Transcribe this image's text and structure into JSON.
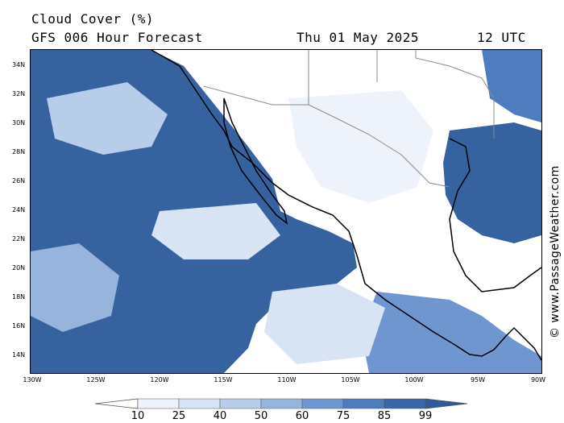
{
  "title": {
    "variable": "Cloud Cover (%)",
    "model": "GFS 006 Hour Forecast",
    "date": "Thu 01 May 2025",
    "time": "12 UTC"
  },
  "credit": "© www.PassageWeather.com",
  "lat_labels": [
    "34N",
    "32N",
    "30N",
    "28N",
    "26N",
    "24N",
    "22N",
    "20N",
    "18N",
    "16N",
    "14N"
  ],
  "lon_labels": [
    "130W",
    "125W",
    "120W",
    "115W",
    "110W",
    "105W",
    "100W",
    "95W",
    "90W"
  ],
  "colorbar": {
    "levels": [
      "10",
      "25",
      "40",
      "50",
      "60",
      "75",
      "85",
      "99"
    ],
    "colors": [
      "#ffffff",
      "#eef3fb",
      "#d8e3f3",
      "#b8cde9",
      "#97b4dd",
      "#6f96cf",
      "#4f7bbf",
      "#3a65a8",
      "#2f5a9c"
    ]
  },
  "colors": {
    "ocean_cloud": "#36639f",
    "coastline": "#000000",
    "border": "#8a8a8a"
  }
}
